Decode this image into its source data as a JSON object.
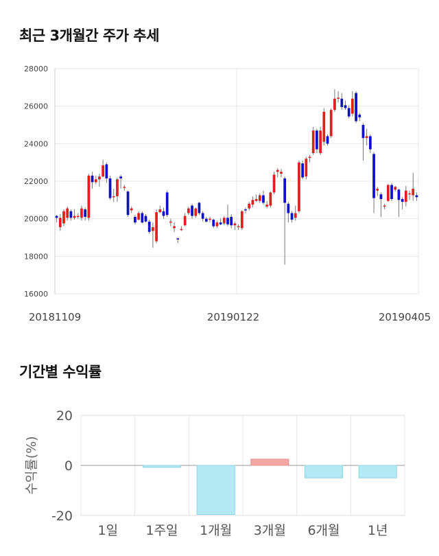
{
  "section1": {
    "title": "최근 3개월간 주가 추세"
  },
  "section2": {
    "title": "기간별 수익률"
  },
  "colors": {
    "up": "#e02020",
    "down": "#1010c8",
    "positive": "#f4a6a6",
    "negative": "#b3e9f3"
  },
  "chart_data": [
    {
      "type": "candlestick",
      "title": "최근 3개월간 주가 추세",
      "ylim": [
        16000,
        28000
      ],
      "y_ticks": [
        28000,
        26000,
        24000,
        22000,
        20000,
        18000,
        16000
      ],
      "x_tick_labels": [
        "20181109",
        "20190122",
        "20190405"
      ],
      "grid": true,
      "candles": [
        [
          20150,
          20050,
          20200,
          19800
        ],
        [
          19550,
          20050,
          20250,
          19350
        ],
        [
          19750,
          20400,
          20500,
          19600
        ],
        [
          20050,
          20550,
          20650,
          19900
        ],
        [
          20400,
          20050,
          20500,
          19900
        ],
        [
          20050,
          20150,
          20500,
          19950
        ],
        [
          20150,
          20150,
          20300,
          20000
        ],
        [
          20050,
          20550,
          20700,
          19900
        ],
        [
          20500,
          20100,
          20600,
          19900
        ],
        [
          20050,
          22300,
          22400,
          19900
        ],
        [
          22300,
          21950,
          22500,
          21600
        ],
        [
          21950,
          22100,
          22300,
          21850
        ],
        [
          22100,
          22250,
          22400,
          21700
        ],
        [
          22250,
          22850,
          23150,
          22200
        ],
        [
          22900,
          22150,
          23000,
          21900
        ],
        [
          22150,
          21100,
          22300,
          21000
        ],
        [
          21150,
          21200,
          21600,
          20900
        ],
        [
          21200,
          22100,
          22200,
          20900
        ],
        [
          22250,
          22150,
          22350,
          21600
        ],
        [
          21650,
          21700,
          21800,
          21500
        ],
        [
          21450,
          20200,
          21500,
          20100
        ],
        [
          20450,
          20550,
          20650,
          20300
        ],
        [
          20100,
          19800,
          20200,
          19700
        ],
        [
          19950,
          20300,
          20400,
          19900
        ],
        [
          20300,
          19800,
          20400,
          19750
        ],
        [
          20150,
          19850,
          20250,
          19800
        ],
        [
          19850,
          19300,
          19950,
          19200
        ],
        [
          19350,
          19550,
          19800,
          18450
        ],
        [
          18800,
          20350,
          20500,
          18700
        ],
        [
          20350,
          20500,
          20700,
          20300
        ],
        [
          20400,
          20150,
          20600,
          20000
        ],
        [
          21400,
          20200,
          21500,
          20100
        ],
        [
          19800,
          19850,
          20000,
          19600
        ],
        [
          19500,
          19600,
          19800,
          19300
        ],
        [
          18950,
          18900,
          19000,
          18700
        ],
        [
          19450,
          19450,
          19600,
          19350
        ],
        [
          19650,
          20150,
          20300,
          19600
        ],
        [
          20300,
          20550,
          20650,
          20200
        ],
        [
          20700,
          20150,
          20800,
          20000
        ],
        [
          20150,
          20550,
          20600,
          20050
        ],
        [
          20850,
          20300,
          20900,
          20200
        ],
        [
          20300,
          20000,
          20400,
          19850
        ],
        [
          20000,
          19850,
          20100,
          19800
        ],
        [
          19950,
          20000,
          20100,
          19800
        ],
        [
          19950,
          19600,
          20000,
          19500
        ],
        [
          19600,
          19800,
          19900,
          19500
        ],
        [
          19800,
          19700,
          20000,
          19650
        ],
        [
          19750,
          20050,
          20150,
          19650
        ],
        [
          20050,
          19700,
          20750,
          19600
        ],
        [
          20100,
          19650,
          20250,
          19500
        ],
        [
          19650,
          19750,
          19850,
          19400
        ],
        [
          19550,
          19600,
          19700,
          19400
        ],
        [
          19500,
          20400,
          20450,
          19400
        ],
        [
          20500,
          20450,
          20600,
          20300
        ],
        [
          20550,
          20800,
          20900,
          20450
        ],
        [
          20750,
          21000,
          21200,
          20600
        ],
        [
          20950,
          21050,
          21300,
          20900
        ],
        [
          20950,
          21250,
          21350,
          20850
        ],
        [
          21250,
          20850,
          21500,
          20750
        ],
        [
          20650,
          20750,
          20950,
          20550
        ],
        [
          20700,
          21400,
          21450,
          20600
        ],
        [
          21400,
          22350,
          22500,
          21300
        ],
        [
          22500,
          22600,
          22700,
          22200
        ],
        [
          22400,
          22500,
          22650,
          22200
        ],
        [
          22150,
          20850,
          22250,
          17550
        ],
        [
          20800,
          20300,
          20900,
          19800
        ],
        [
          20300,
          19950,
          20400,
          19800
        ],
        [
          20050,
          20300,
          20700,
          19900
        ],
        [
          20400,
          23000,
          23100,
          20300
        ],
        [
          22950,
          22200,
          23100,
          22100
        ],
        [
          22250,
          23200,
          23300,
          22100
        ],
        [
          23300,
          23300,
          23400,
          23000
        ],
        [
          23500,
          24700,
          24900,
          23400
        ],
        [
          24700,
          23700,
          24800,
          23500
        ],
        [
          23500,
          24700,
          24900,
          23400
        ],
        [
          24100,
          25700,
          25900,
          23900
        ],
        [
          24400,
          24000,
          24500,
          23900
        ],
        [
          24400,
          25800,
          25900,
          24300
        ],
        [
          25800,
          26400,
          26900,
          25700
        ],
        [
          26400,
          26450,
          26800,
          26200
        ],
        [
          26400,
          25950,
          26700,
          25800
        ],
        [
          26050,
          25900,
          26300,
          25800
        ],
        [
          25900,
          25450,
          26050,
          25350
        ],
        [
          25600,
          26400,
          26800,
          25450
        ],
        [
          26700,
          25200,
          26800,
          25100
        ],
        [
          25550,
          25400,
          25650,
          25200
        ],
        [
          25000,
          24300,
          25100,
          23100
        ],
        [
          24300,
          24400,
          24800,
          23900
        ],
        [
          24400,
          23700,
          24500,
          23500
        ],
        [
          23450,
          21100,
          23550,
          20300
        ],
        [
          21500,
          21600,
          21700,
          21200
        ],
        [
          21300,
          21050,
          21400,
          20100
        ],
        [
          20650,
          20700,
          20800,
          20500
        ],
        [
          20950,
          21800,
          21850,
          20900
        ],
        [
          21800,
          21050,
          21900,
          20950
        ],
        [
          21550,
          21700,
          21750,
          21450
        ],
        [
          21550,
          21000,
          21600,
          20100
        ],
        [
          21050,
          20900,
          21150,
          20500
        ],
        [
          20900,
          21500,
          21750,
          20650
        ],
        [
          21300,
          21350,
          21500,
          21000
        ],
        [
          21250,
          21600,
          22450,
          20950
        ],
        [
          21250,
          21150,
          21400,
          20950
        ]
      ]
    },
    {
      "type": "bar",
      "title": "기간별 수익률",
      "ylabel": "수익률(%)",
      "ylim": [
        -20,
        20
      ],
      "y_ticks": [
        20,
        0,
        -20
      ],
      "categories": [
        "1일",
        "1주일",
        "1개월",
        "3개월",
        "6개월",
        "1년"
      ],
      "values": [
        0,
        -0.8,
        -19.6,
        2.5,
        -5.0,
        -5.0
      ]
    }
  ]
}
